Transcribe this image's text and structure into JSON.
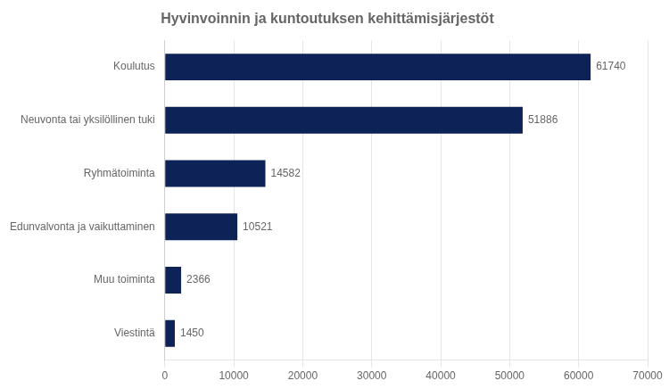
{
  "chart_data": {
    "type": "bar",
    "orientation": "horizontal",
    "title": "Hyvinvoinnin ja kuntoutuksen kehittämisjärjestöt",
    "categories": [
      "Koulutus",
      "Neuvonta tai yksilöllinen tuki",
      "Ryhmätoiminta",
      "Edunvalvonta ja vaikuttaminen",
      "Muu toiminta",
      "Viestintä"
    ],
    "values": [
      61740,
      51886,
      14582,
      10521,
      2366,
      1450
    ],
    "color": "#0d2257",
    "xlim": [
      0,
      70000
    ],
    "xticks": [
      0,
      10000,
      20000,
      30000,
      40000,
      50000,
      60000,
      70000
    ],
    "grid": true,
    "data_labels": true
  }
}
